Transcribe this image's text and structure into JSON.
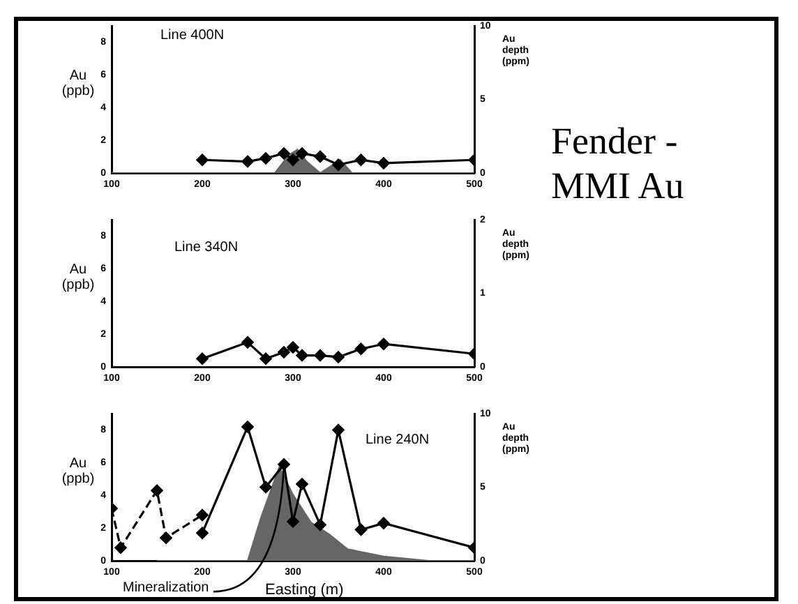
{
  "chart_data": [
    {
      "type": "line",
      "title": "Line 400N",
      "ylabel": "Au (ppb)",
      "y2label": "Au depth (ppm)",
      "xlim": [
        100,
        500
      ],
      "xticks": [
        100,
        200,
        300,
        400,
        500
      ],
      "ylim": [
        0,
        9
      ],
      "yticks": [
        0,
        2,
        4,
        6,
        8
      ],
      "y2lim": [
        0,
        10
      ],
      "y2ticks": [
        0,
        5,
        10
      ],
      "marker": "diamond",
      "grid": false,
      "legend": false,
      "series": [
        {
          "color": "#000000",
          "x": [
            200,
            250,
            270,
            290,
            300,
            310,
            330,
            350,
            375,
            400,
            500
          ],
          "values": [
            0.8,
            0.7,
            0.9,
            1.2,
            0.8,
            1.2,
            1.0,
            0.5,
            0.8,
            0.6,
            0.8
          ]
        },
        {
          "type": "area",
          "axis": "y2",
          "marker": "none",
          "color": "#666666",
          "x": [
            100,
            280,
            295,
            305,
            315,
            330,
            345,
            352,
            365,
            500
          ],
          "values": [
            0,
            0,
            1.2,
            1.6,
            0.8,
            0,
            0.6,
            0.9,
            0,
            0
          ]
        }
      ]
    },
    {
      "type": "line",
      "title": "Line 340N",
      "ylabel": "Au (ppb)",
      "y2label": "Au depth (ppm)",
      "xlim": [
        100,
        500
      ],
      "xticks": [
        100,
        200,
        300,
        400,
        500
      ],
      "ylim": [
        0,
        9
      ],
      "yticks": [
        0,
        2,
        4,
        6,
        8
      ],
      "y2lim": [
        0,
        2
      ],
      "y2ticks": [
        0,
        1,
        2
      ],
      "marker": "diamond",
      "grid": false,
      "legend": false,
      "series": [
        {
          "color": "#000000",
          "x": [
            200,
            250,
            270,
            290,
            300,
            310,
            330,
            350,
            375,
            400,
            500
          ],
          "values": [
            0.5,
            1.5,
            0.5,
            0.9,
            1.2,
            0.7,
            0.7,
            0.6,
            1.1,
            1.4,
            0.8
          ]
        }
      ]
    },
    {
      "type": "line",
      "title": "Line 240N",
      "ylabel": "Au (ppb)",
      "y2label": "Au depth (ppm)",
      "xlabel": "Easting (m)",
      "annotations": [
        {
          "text": "Mineralization",
          "x": 290,
          "y": 5.9
        }
      ],
      "xlim": [
        100,
        500
      ],
      "xticks": [
        100,
        200,
        300,
        400,
        500
      ],
      "ylim": [
        0,
        9
      ],
      "yticks": [
        0,
        2,
        4,
        6,
        8
      ],
      "y2lim": [
        0,
        10
      ],
      "y2ticks": [
        0,
        5,
        10
      ],
      "marker": "diamond",
      "grid": false,
      "legend": false,
      "series": [
        {
          "color": "#000000",
          "line_style": "dashed",
          "x": [
            100,
            110,
            150,
            160,
            200
          ],
          "values": [
            3.2,
            0.8,
            4.3,
            1.4,
            2.8
          ]
        },
        {
          "color": "#000000",
          "x": [
            200,
            250,
            270,
            290,
            300,
            310,
            330,
            350,
            375,
            400,
            500
          ],
          "values": [
            1.7,
            8.2,
            4.5,
            5.9,
            2.4,
            4.7,
            2.2,
            8.0,
            1.9,
            2.3,
            0.8
          ]
        },
        {
          "type": "area",
          "axis": "y2",
          "marker": "none",
          "color": "#666666",
          "x": [
            150,
            250,
            265,
            285,
            300,
            320,
            340,
            360,
            400,
            450,
            500
          ],
          "values": [
            0,
            0,
            3,
            6.4,
            4.5,
            2.6,
            1.8,
            0.8,
            0.3,
            0,
            0
          ]
        }
      ]
    },
    {
      "type": "other",
      "title": "Fender - MMI Au"
    }
  ]
}
